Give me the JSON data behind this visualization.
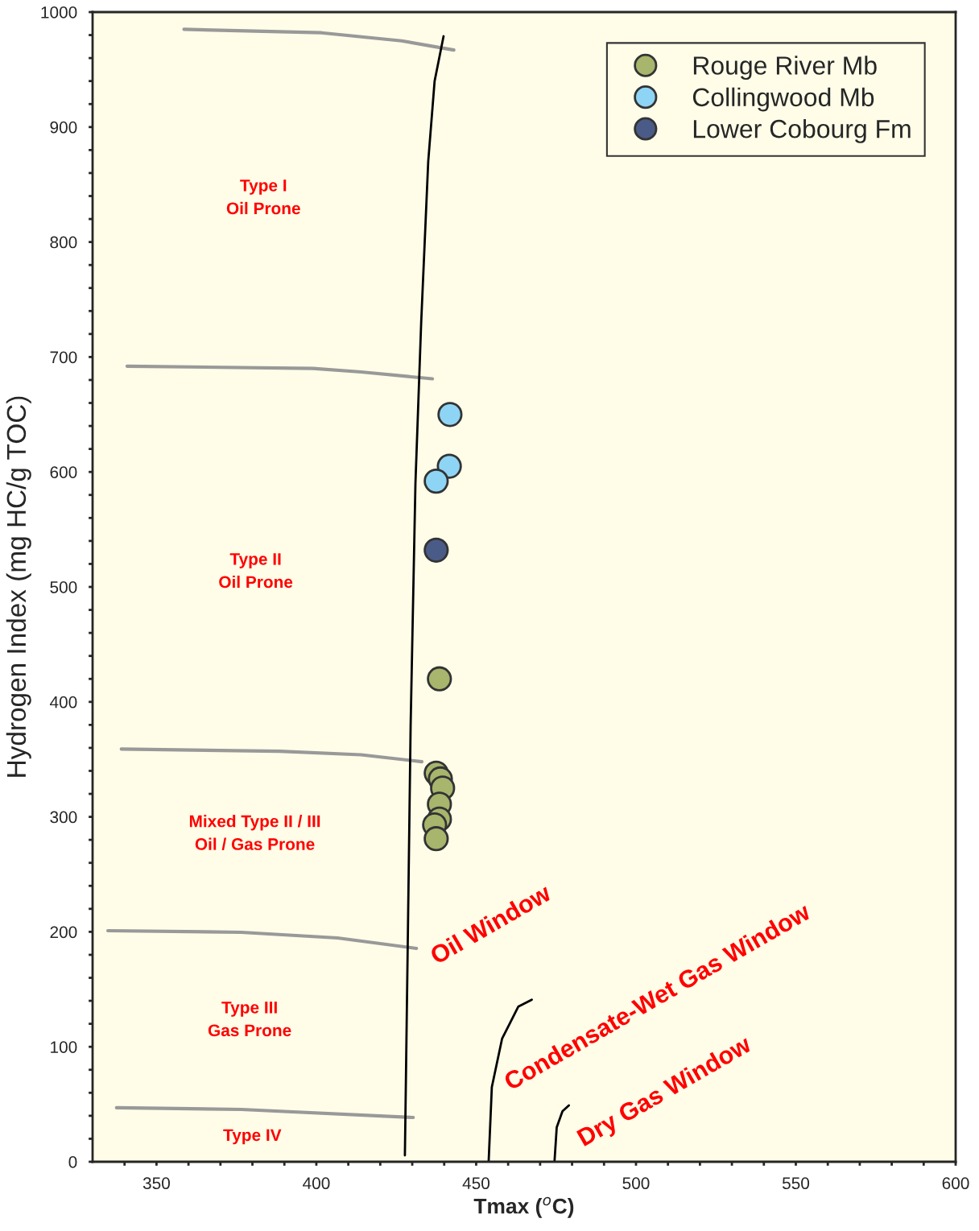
{
  "chart_data": {
    "type": "scatter",
    "xlabel": "Tmax ($^{o}$C)",
    "ylabel": "Hydrogen Index (mg HC/g TOC)",
    "xlim": [
      330,
      600
    ],
    "ylim": [
      0,
      1000
    ],
    "xticks": [
      {
        "value": 340,
        "label": null
      },
      350,
      {
        "value": 360,
        "label": null
      },
      {
        "value": 370,
        "label": null
      },
      {
        "value": 380,
        "label": null
      },
      {
        "value": 390,
        "label": null
      },
      400,
      {
        "value": 410,
        "label": null
      },
      {
        "value": 420,
        "label": null
      },
      {
        "value": 430,
        "label": null
      },
      {
        "value": 440,
        "label": null
      },
      450,
      {
        "value": 460,
        "label": null
      },
      {
        "value": 470,
        "label": null
      },
      {
        "value": 480,
        "label": null
      },
      {
        "value": 490,
        "label": null
      },
      500,
      {
        "value": 510,
        "label": null
      },
      {
        "value": 520,
        "label": null
      },
      {
        "value": 530,
        "label": null
      },
      {
        "value": 540,
        "label": null
      },
      550,
      {
        "value": 560,
        "label": null
      },
      {
        "value": 570,
        "label": null
      },
      {
        "value": 580,
        "label": null
      },
      {
        "value": 590,
        "label": null
      },
      600
    ],
    "yticks": [
      0,
      {
        "value": 20,
        "label": null
      },
      {
        "value": 40,
        "label": null
      },
      {
        "value": 60,
        "label": null
      },
      {
        "value": 80,
        "label": null
      },
      100,
      {
        "value": 120,
        "label": null
      },
      {
        "value": 140,
        "label": null
      },
      {
        "value": 160,
        "label": null
      },
      {
        "value": 180,
        "label": null
      },
      200,
      {
        "value": 220,
        "label": null
      },
      {
        "value": 240,
        "label": null
      },
      {
        "value": 260,
        "label": null
      },
      {
        "value": 280,
        "label": null
      },
      300,
      {
        "value": 320,
        "label": null
      },
      {
        "value": 340,
        "label": null
      },
      {
        "value": 360,
        "label": null
      },
      {
        "value": 380,
        "label": null
      },
      400,
      {
        "value": 420,
        "label": null
      },
      {
        "value": 440,
        "label": null
      },
      {
        "value": 460,
        "label": null
      },
      {
        "value": 480,
        "label": null
      },
      500,
      {
        "value": 520,
        "label": null
      },
      {
        "value": 540,
        "label": null
      },
      {
        "value": 560,
        "label": null
      },
      {
        "value": 580,
        "label": null
      },
      600,
      {
        "value": 620,
        "label": null
      },
      {
        "value": 640,
        "label": null
      },
      {
        "value": 660,
        "label": null
      },
      {
        "value": 680,
        "label": null
      },
      700,
      {
        "value": 720,
        "label": null
      },
      {
        "value": 740,
        "label": null
      },
      {
        "value": 760,
        "label": null
      },
      {
        "value": 780,
        "label": null
      },
      800,
      {
        "value": 820,
        "label": null
      },
      {
        "value": 840,
        "label": null
      },
      {
        "value": 860,
        "label": null
      },
      {
        "value": 880,
        "label": null
      },
      900,
      {
        "value": 920,
        "label": null
      },
      {
        "value": 940,
        "label": null
      },
      {
        "value": 960,
        "label": null
      },
      {
        "value": 980,
        "label": null
      },
      1000
    ],
    "grid": false,
    "legend": "top right",
    "series": [
      {
        "type": "line",
        "color": "#999999",
        "x": [
          358.6,
          401.6,
          426.7,
          443
        ],
        "values": [
          985,
          982,
          975,
          967
        ]
      },
      {
        "type": "line",
        "color": "#999999",
        "x": [
          340.8,
          399,
          414,
          436.3
        ],
        "values": [
          692,
          690,
          687,
          681
        ]
      },
      {
        "type": "line",
        "color": "#999999",
        "x": [
          339,
          388.6,
          414,
          433
        ],
        "values": [
          359,
          357,
          354,
          348
        ]
      },
      {
        "type": "line",
        "color": "#999999",
        "x": [
          334.8,
          376.5,
          406.6,
          431.3
        ],
        "values": [
          201,
          199.6,
          194.7,
          185.6
        ]
      },
      {
        "type": "line",
        "color": "#999999",
        "x": [
          337.5,
          376.5,
          430.3
        ],
        "values": [
          47,
          45.5,
          38.5
        ]
      },
      {
        "type": "line",
        "color": "#000000",
        "x": [
          427.7,
          428.5,
          429.5,
          431,
          432.8,
          435,
          437,
          439.8
        ],
        "values": [
          5.6,
          170,
          380,
          590,
          730,
          870,
          940,
          979
        ]
      },
      {
        "type": "line",
        "color": "#000000",
        "x": [
          453.9,
          454.9,
          458.1,
          463.2,
          467.4
        ],
        "values": [
          0,
          65,
          107,
          135,
          141
        ]
      },
      {
        "type": "line",
        "color": "#000000",
        "x": [
          474.5,
          475.2,
          477,
          479
        ],
        "values": [
          0,
          30,
          44,
          49
        ]
      },
      {
        "marker": "circle",
        "name": "Rouge River Mb",
        "color": "#a7b56d",
        "x": [
          438.5,
          437.5,
          438.8,
          439.5,
          438.5,
          438.5,
          437,
          437.5
        ],
        "values": [
          420,
          338,
          333,
          325,
          311,
          298,
          293,
          281
        ]
      },
      {
        "marker": "circle",
        "name": "Collingwood Mb",
        "color": "#8ed4f5",
        "x": [
          441.8,
          441.6,
          437.5
        ],
        "values": [
          650,
          605,
          592
        ]
      },
      {
        "marker": "circle",
        "name": "Lower Cobourg Fm",
        "color": "#4b5b87",
        "x": [
          437.5
        ],
        "values": [
          532
        ]
      }
    ],
    "annotations": [
      "Type I\nOil Prone",
      "Type II\nOil Prone",
      "Mixed Type II / III\nOil / Gas Prone",
      "Type III\nGas Prone",
      "Type IV",
      "Oil Window",
      "Condensate-Wet Gas Window",
      "Dry Gas Window"
    ]
  }
}
